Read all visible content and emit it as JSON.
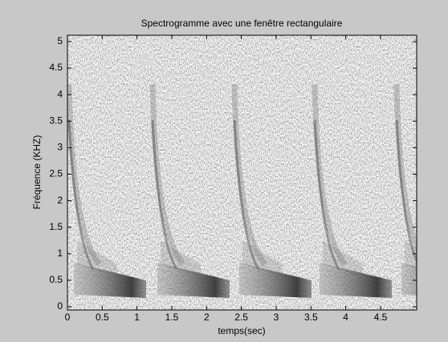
{
  "chart_data": {
    "type": "spectrogram",
    "title": "Spectrogramme avec une fenêtre rectangulaire",
    "x_label": "temps(sec)",
    "y_label": "Fréquence (KHZ)",
    "xlim": [
      0,
      5.02
    ],
    "ylim": [
      -0.06,
      5.12
    ],
    "xticks": [
      0,
      0.5,
      1,
      1.5,
      2,
      2.5,
      3,
      3.5,
      4,
      4.5
    ],
    "yticks": [
      0,
      0.5,
      1,
      1.5,
      2,
      2.5,
      3,
      3.5,
      4,
      4.5,
      5
    ]
  }
}
